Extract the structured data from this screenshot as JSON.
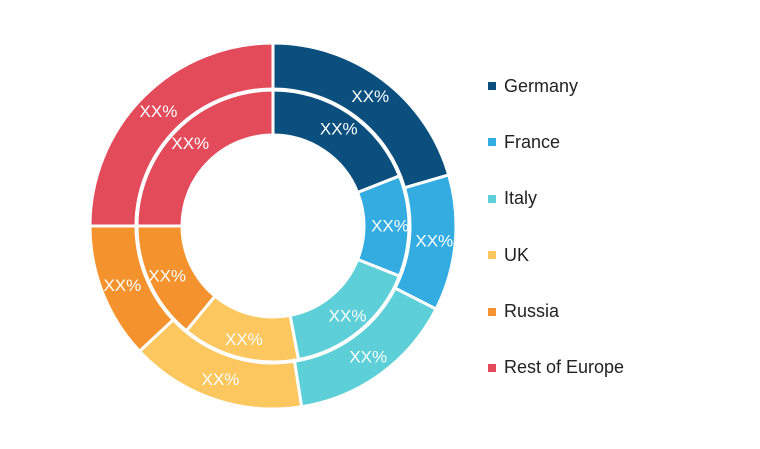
{
  "chart_data": {
    "type": "pie",
    "variant": "double-donut",
    "categories": [
      "Germany",
      "France",
      "Italy",
      "UK",
      "Russia",
      "Rest of Europe"
    ],
    "colors": [
      "#0b4f7f",
      "#33ace2",
      "#5ccfd8",
      "#fbc75e",
      "#f4922e",
      "#e34a5a"
    ],
    "series": [
      {
        "ring": "outer",
        "values": [
          20.5,
          12.0,
          15.0,
          15.5,
          12.0,
          25.0
        ],
        "labels": [
          "XX%",
          "XX%",
          "XX%",
          "XX%",
          "XX%",
          "XX%"
        ]
      },
      {
        "ring": "inner",
        "values": [
          19.0,
          12.0,
          16.0,
          14.0,
          14.0,
          25.0
        ],
        "labels": [
          "XX%",
          "XX%",
          "XX%",
          "XX%",
          "XX%",
          "XX%"
        ]
      }
    ],
    "legend": {
      "position": "right",
      "entries": [
        "Germany",
        "France",
        "Italy",
        "UK",
        "Russia",
        "Rest of Europe"
      ]
    }
  }
}
